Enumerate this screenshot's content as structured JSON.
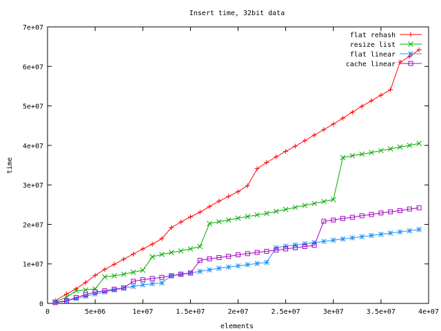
{
  "chart_data": {
    "type": "line",
    "title": "Insert time, 32bit data",
    "xlabel": "elements",
    "ylabel": "time",
    "xlim": [
      0,
      40000000
    ],
    "ylim": [
      0,
      70000000
    ],
    "xticks": [
      {
        "v": 0,
        "label": "0"
      },
      {
        "v": 5000000,
        "label": "5e+06"
      },
      {
        "v": 10000000,
        "label": "1e+07"
      },
      {
        "v": 15000000,
        "label": "1.5e+07"
      },
      {
        "v": 20000000,
        "label": "2e+07"
      },
      {
        "v": 25000000,
        "label": "2.5e+07"
      },
      {
        "v": 30000000,
        "label": "3e+07"
      },
      {
        "v": 35000000,
        "label": "3.5e+07"
      },
      {
        "v": 40000000,
        "label": "4e+07"
      }
    ],
    "yticks": [
      {
        "v": 0,
        "label": "0"
      },
      {
        "v": 10000000,
        "label": "1e+07"
      },
      {
        "v": 20000000,
        "label": "2e+07"
      },
      {
        "v": 30000000,
        "label": "3e+07"
      },
      {
        "v": 40000000,
        "label": "4e+07"
      },
      {
        "v": 50000000,
        "label": "5e+07"
      },
      {
        "v": 60000000,
        "label": "6e+07"
      },
      {
        "v": 70000000,
        "label": "7e+07"
      }
    ],
    "grid": false,
    "legend_position": "top-right",
    "x": [
      800000,
      2000000,
      3000000,
      4000000,
      5000000,
      6000000,
      7000000,
      8000000,
      9000000,
      10000000,
      11000000,
      12000000,
      13000000,
      14000000,
      15000000,
      16000000,
      17000000,
      18000000,
      19000000,
      20000000,
      21000000,
      22000000,
      23000000,
      24000000,
      25000000,
      26000000,
      27000000,
      28000000,
      29000000,
      30000000,
      31000000,
      32000000,
      33000000,
      34000000,
      35000000,
      36000000,
      37000000,
      38000000,
      39000000
    ],
    "series": [
      {
        "name": "flat rehash",
        "color": "#ff0000",
        "marker": "plus",
        "values": [
          700000,
          2400000,
          3700000,
          5300000,
          7100000,
          8600000,
          9900000,
          11200000,
          12500000,
          13800000,
          15000000,
          16400000,
          19200000,
          20600000,
          21900000,
          23100000,
          24500000,
          25900000,
          27100000,
          28300000,
          29800000,
          34100000,
          35700000,
          37100000,
          38500000,
          39800000,
          41200000,
          42600000,
          44000000,
          45400000,
          46900000,
          48400000,
          49900000,
          51300000,
          52700000,
          54100000,
          61100000,
          62500000,
          64200000
        ]
      },
      {
        "name": "resize list",
        "color": "#00aa00",
        "marker": "cross",
        "values": [
          400000,
          1600000,
          3200000,
          3400000,
          3700000,
          6700000,
          7000000,
          7400000,
          7900000,
          8400000,
          11800000,
          12400000,
          12900000,
          13300000,
          13800000,
          14400000,
          20200000,
          20700000,
          21100000,
          21600000,
          22000000,
          22400000,
          22800000,
          23300000,
          23800000,
          24300000,
          24800000,
          25300000,
          25800000,
          26300000,
          36900000,
          37400000,
          37800000,
          38200000,
          38700000,
          39100000,
          39600000,
          40000000,
          40500000
        ]
      },
      {
        "name": "flat linear",
        "color": "#1e90ff",
        "marker": "star",
        "values": [
          300000,
          700000,
          1200000,
          1800000,
          2400000,
          2900000,
          3400000,
          3900000,
          4300000,
          4700000,
          5000000,
          5200000,
          7000000,
          7300000,
          7700000,
          8100000,
          8500000,
          8900000,
          9200000,
          9500000,
          9800000,
          10100000,
          10400000,
          14100000,
          14500000,
          14800000,
          15100000,
          15400000,
          15700000,
          16000000,
          16300000,
          16600000,
          16900000,
          17200000,
          17500000,
          17800000,
          18100000,
          18400000,
          18700000
        ]
      },
      {
        "name": "cache linear",
        "color": "#a000c0",
        "marker": "square",
        "values": [
          200000,
          600000,
          1500000,
          2200000,
          2900000,
          3200000,
          3600000,
          3900000,
          5600000,
          6000000,
          6300000,
          6600000,
          7000000,
          7400000,
          7700000,
          10900000,
          11300000,
          11600000,
          11900000,
          12300000,
          12600000,
          12900000,
          13200000,
          13500000,
          13800000,
          14100000,
          14400000,
          14700000,
          20800000,
          21100000,
          21500000,
          21800000,
          22200000,
          22500000,
          22900000,
          23200000,
          23500000,
          23900000,
          24200000
        ]
      }
    ]
  }
}
